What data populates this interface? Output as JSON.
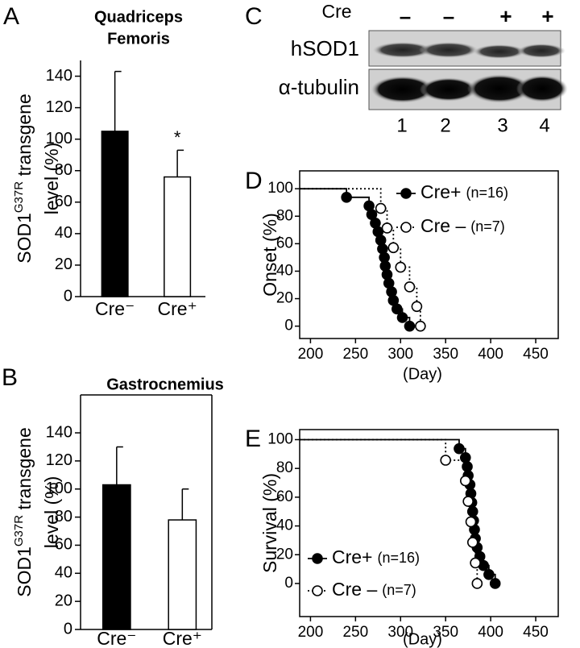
{
  "chart_data": [
    {
      "type": "bar",
      "panel": "A",
      "title": [
        "Quadriceps",
        "Femoris"
      ],
      "ylabel": {
        "text": "SOD1",
        "sup": "G37R",
        "rest": " transgene",
        "line2": "level (%)"
      },
      "categories": [
        "Cre⁻",
        "Cre⁺"
      ],
      "values": [
        105,
        76
      ],
      "errors": [
        38,
        17
      ],
      "colors": [
        "#000000",
        "#ffffff"
      ],
      "annotations": [
        null,
        "*"
      ],
      "ylim": [
        0,
        150
      ],
      "yticks": [
        0,
        20,
        40,
        60,
        80,
        100,
        120,
        140
      ],
      "frame": false
    },
    {
      "type": "bar",
      "panel": "B",
      "title": [
        "Gastrocnemius"
      ],
      "ylabel": {
        "text": "SOD1",
        "sup": "G37R",
        "rest": " transgene",
        "line2": "level (%)"
      },
      "categories": [
        "Cre⁻",
        "Cre⁺"
      ],
      "values": [
        103,
        78
      ],
      "errors": [
        27,
        22
      ],
      "colors": [
        "#000000",
        "#ffffff"
      ],
      "annotations": [
        null,
        null
      ],
      "ylim": [
        0,
        167
      ],
      "yticks": [
        0,
        20,
        40,
        60,
        80,
        100,
        120,
        140
      ],
      "frame": true
    },
    {
      "type": "step",
      "panel": "D",
      "ylabel": "Onset (%)",
      "xlabel": "(Day)",
      "xlim": [
        188,
        475
      ],
      "xticks": [
        200,
        250,
        300,
        350,
        400,
        450
      ],
      "ylim": [
        -9,
        113
      ],
      "yticks": [
        0,
        20,
        40,
        60,
        80,
        100
      ],
      "legend": "upper right",
      "series": [
        {
          "name": "Cre+",
          "note": "(n=16)",
          "color": "#000000",
          "marker": "filled",
          "linestyle": "solid",
          "start_value": 100,
          "x": [
            240,
            265,
            268,
            272,
            275,
            278,
            280,
            282,
            283,
            285,
            287,
            290,
            292,
            296,
            302,
            310
          ],
          "values": [
            93.75,
            87.5,
            81.25,
            75,
            68.75,
            62.5,
            56.25,
            50,
            43.75,
            37.5,
            31.25,
            25,
            18.75,
            12.5,
            6.25,
            0
          ]
        },
        {
          "name": "Cre –",
          "note": "(n=7)",
          "color": "#000000",
          "marker": "open",
          "linestyle": "dotted",
          "start_value": 100,
          "x": [
            278,
            285,
            292,
            300,
            310,
            318,
            322
          ],
          "values": [
            85.7,
            71.4,
            57.1,
            42.9,
            28.6,
            14.3,
            0
          ]
        }
      ]
    },
    {
      "type": "step",
      "panel": "E",
      "ylabel": "Survival (%)",
      "xlabel": "(Day)",
      "xlim": [
        188,
        475
      ],
      "xticks": [
        200,
        250,
        300,
        350,
        400,
        450
      ],
      "ylim": [
        -23,
        107
      ],
      "yticks": [
        0,
        20,
        40,
        60,
        80,
        100
      ],
      "legend": "lower left",
      "series": [
        {
          "name": "Cre+",
          "note": "(n=16)",
          "color": "#000000",
          "marker": "filled",
          "linestyle": "solid",
          "start_value": 100,
          "x": [
            365,
            372,
            374,
            375,
            377,
            378,
            379,
            380,
            381,
            382,
            383,
            385,
            388,
            392,
            398,
            405
          ],
          "values": [
            93.75,
            87.5,
            81.25,
            75,
            68.75,
            62.5,
            56.25,
            50,
            43.75,
            37.5,
            31.25,
            25,
            18.75,
            12.5,
            6.25,
            0
          ]
        },
        {
          "name": "Cre –",
          "note": "(n=7)",
          "color": "#000000",
          "marker": "open",
          "linestyle": "dotted",
          "start_value": 100,
          "x": [
            350,
            372,
            375,
            378,
            380,
            383,
            385
          ],
          "values": [
            85.7,
            71.4,
            57.1,
            42.9,
            28.6,
            14.3,
            0
          ]
        }
      ]
    }
  ],
  "blot": {
    "panel": "C",
    "condition_label": "Cre",
    "conditions": [
      "–",
      "–",
      "+",
      "+"
    ],
    "rows": [
      "hSOD1",
      "α-tubulin"
    ],
    "lanes": [
      "1",
      "2",
      "3",
      "4"
    ]
  }
}
